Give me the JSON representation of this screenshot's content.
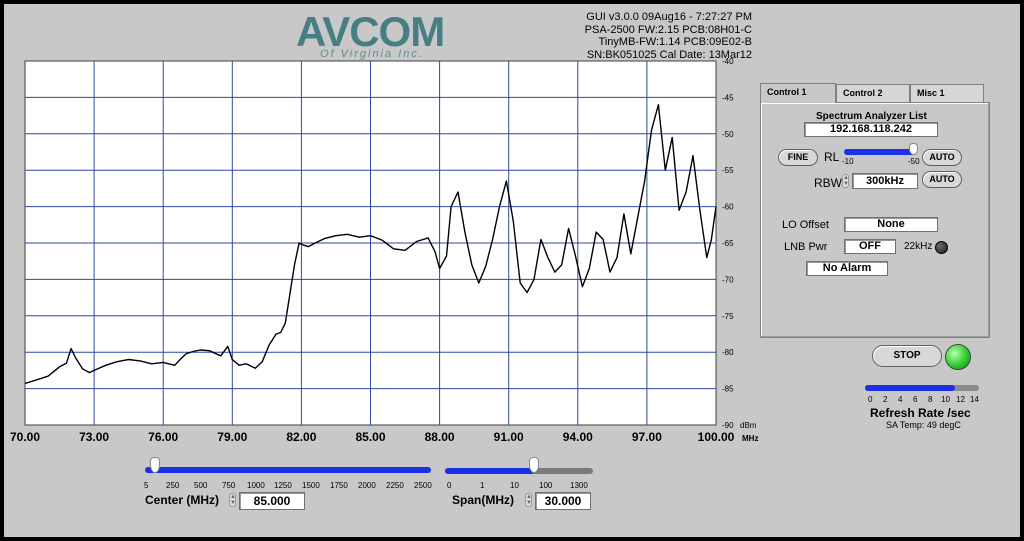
{
  "header": {
    "logo_text": "AVCOM",
    "logo_sub": "Of Virginia Inc.",
    "info_lines": [
      "GUI v3.0.0  09Aug16 - 7:27:27 PM",
      "PSA-2500 FW:2.15 PCB:08H01-C",
      "TinyMB-FW:1.14  PCB:09E02-B",
      "SN:BK051025  Cal Date: 13Mar12"
    ]
  },
  "chart_data": {
    "type": "line",
    "xlabel": "MHz",
    "ylabel": "dBm",
    "xlim": [
      70,
      100
    ],
    "ylim": [
      -90,
      -40
    ],
    "x_ticks": [
      "70.00",
      "73.00",
      "76.00",
      "79.00",
      "82.00",
      "85.00",
      "88.00",
      "91.00",
      "94.00",
      "97.00",
      "100.00"
    ],
    "y_ticks": [
      "-40",
      "-45",
      "-50",
      "-55",
      "-60",
      "-65",
      "-70",
      "-75",
      "-80",
      "-85",
      "-90"
    ],
    "grid": true,
    "series": [
      {
        "color": "#000000",
        "x": [
          70.0,
          70.5,
          71.0,
          71.5,
          71.8,
          72.0,
          72.2,
          72.5,
          72.8,
          73.0,
          73.5,
          74.0,
          74.5,
          75.0,
          75.5,
          76.0,
          76.5,
          76.8,
          77.0,
          77.3,
          77.6,
          78.0,
          78.5,
          78.8,
          79.0,
          79.3,
          79.6,
          80.0,
          80.3,
          80.6,
          80.9,
          81.1,
          81.3,
          81.5,
          81.7,
          81.9,
          82.1,
          82.3,
          82.6,
          83.0,
          83.5,
          84.0,
          84.5,
          85.0,
          85.5,
          86.0,
          86.5,
          87.0,
          87.5,
          87.8,
          88.0,
          88.3,
          88.5,
          88.8,
          89.1,
          89.4,
          89.7,
          90.0,
          90.3,
          90.6,
          90.9,
          91.2,
          91.5,
          91.8,
          92.1,
          92.4,
          92.7,
          93.0,
          93.3,
          93.6,
          93.9,
          94.2,
          94.5,
          94.8,
          95.1,
          95.4,
          95.7,
          96.0,
          96.3,
          96.6,
          96.9,
          97.2,
          97.5,
          97.8,
          98.1,
          98.4,
          98.7,
          99.0,
          99.3,
          99.6,
          99.8,
          100.0
        ],
        "y": [
          -84.3,
          -83.8,
          -83.3,
          -82.0,
          -81.5,
          -79.5,
          -80.8,
          -82.3,
          -82.8,
          -82.5,
          -81.8,
          -81.3,
          -81.0,
          -81.2,
          -81.6,
          -81.4,
          -81.8,
          -80.8,
          -80.2,
          -79.9,
          -79.7,
          -79.8,
          -80.5,
          -79.2,
          -81.0,
          -81.8,
          -81.6,
          -82.2,
          -81.3,
          -79.0,
          -77.5,
          -77.3,
          -76.0,
          -72.0,
          -68.0,
          -65.0,
          -65.3,
          -65.5,
          -65.0,
          -64.4,
          -64.0,
          -63.8,
          -64.2,
          -64.0,
          -64.6,
          -65.8,
          -66.0,
          -64.8,
          -64.3,
          -66.2,
          -68.5,
          -66.8,
          -60.0,
          -58.0,
          -63.5,
          -68.0,
          -70.5,
          -68.2,
          -64.5,
          -60.0,
          -56.5,
          -62.0,
          -70.5,
          -71.8,
          -70.0,
          -64.5,
          -67.0,
          -69.0,
          -68.0,
          -63.0,
          -66.8,
          -71.0,
          -68.5,
          -63.5,
          -64.5,
          -69.0,
          -67.0,
          -61.0,
          -66.5,
          -61.5,
          -56.5,
          -49.5,
          -46.0,
          -55.0,
          -50.5,
          -60.5,
          -58.0,
          -53.0,
          -60.5,
          -67.0,
          -64.5,
          -60.0
        ]
      }
    ]
  },
  "tabs": [
    {
      "label": "Control 1",
      "active": true
    },
    {
      "label": "Control 2",
      "active": false
    },
    {
      "label": "Misc 1",
      "active": false
    }
  ],
  "control1": {
    "list_label": "Spectrum Analyzer List",
    "ip_value": "192.168.118.242",
    "fine_label": "FINE",
    "rl_label": "RL",
    "rl_min": "-10",
    "rl_max": "-50",
    "rl_level": 1.0,
    "auto_label": "AUTO",
    "rbw_label": "RBW",
    "rbw_value": "300kHz",
    "lo_offset_label": "LO Offset",
    "lo_offset_value": "None",
    "lnb_pwr_label": "LNB Pwr",
    "lnb_pwr_value": "OFF",
    "khz_label": "22kHz",
    "alarm_value": "No Alarm"
  },
  "run": {
    "stop_label": "STOP",
    "led_color": "#2ecc2e",
    "refresh_label": "Refresh Rate /sec",
    "refresh_ticks": [
      "0",
      "2",
      "4",
      "6",
      "8",
      "10",
      "12",
      "14"
    ],
    "refresh_level": 0.71,
    "temp_label": "SA Temp: 49 degC"
  },
  "center": {
    "label": "Center (MHz)",
    "value": "85.000",
    "ticks": [
      "5",
      "250",
      "500",
      "750",
      "1000",
      "1250",
      "1500",
      "1750",
      "2000",
      "2250",
      "2500"
    ],
    "level": 0.0
  },
  "span": {
    "label": "Span(MHz)",
    "value": "30.000",
    "ticks": [
      "0",
      "1",
      "10",
      "100",
      "1300"
    ],
    "level": 0.6
  },
  "colors": {
    "accent_blue": "#1c2ee6",
    "grid_blue": "#3046a0",
    "background": "#c8c8c8"
  }
}
